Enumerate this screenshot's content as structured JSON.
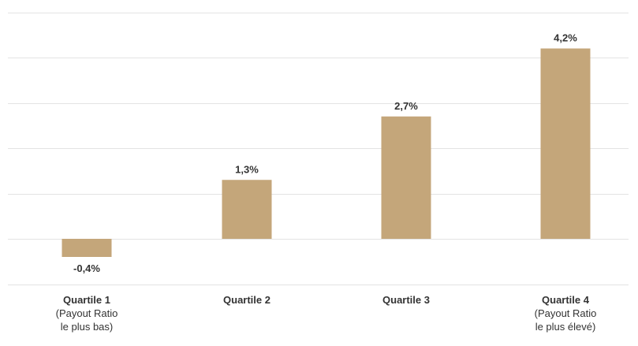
{
  "chart_data": {
    "type": "bar",
    "title": "",
    "xlabel": "",
    "ylabel": "",
    "categories": [
      "Quartile 1",
      "Quartile 2",
      "Quartile 3",
      "Quartile 4"
    ],
    "category_sublabels": [
      "(Payout Ratio\nle plus bas)",
      "",
      "",
      "(Payout Ratio\nle plus élevé)"
    ],
    "values": [
      -0.4,
      1.3,
      2.7,
      4.2
    ],
    "value_labels": [
      "-0,4%",
      "1,3%",
      "2,7%",
      "4,2%"
    ],
    "unit": "%",
    "ylim": [
      -1.0,
      5.0
    ],
    "gridline_values": [
      -1,
      0,
      1,
      2,
      3,
      4,
      5
    ],
    "grid": true,
    "y_tick_labels_visible": false,
    "legend": "none",
    "bar_color": "#c4a67a",
    "grid_color": "#e3e3e3"
  }
}
